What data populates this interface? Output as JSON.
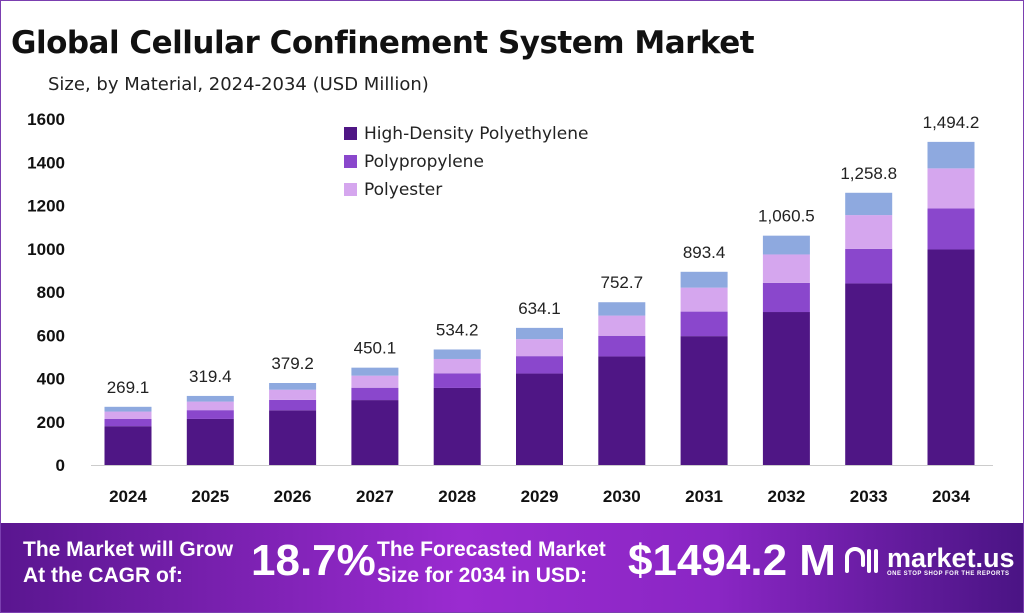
{
  "chart_data": {
    "type": "bar",
    "stacked": true,
    "title": "Global Cellular Confinement System Market",
    "subtitle": "Size, by Material, 2024-2034 (USD Million)",
    "categories": [
      "2024",
      "2025",
      "2026",
      "2027",
      "2028",
      "2029",
      "2030",
      "2031",
      "2032",
      "2033",
      "2034"
    ],
    "series": [
      {
        "name": "High-Density Polyethylene",
        "color": "#4f1685",
        "values": [
          179.5,
          213.0,
          252.9,
          300.2,
          356.3,
          422.9,
          502.0,
          595.9,
          707.4,
          839.6,
          996.6
        ]
      },
      {
        "name": "Polypropylene",
        "color": "#8a47cc",
        "values": [
          34.2,
          40.6,
          48.2,
          57.2,
          67.8,
          80.5,
          95.6,
          113.5,
          134.7,
          159.9,
          189.8
        ]
      },
      {
        "name": "Polyester",
        "color": "#d5a6ee",
        "values": [
          33.4,
          39.6,
          47.0,
          55.8,
          66.2,
          78.6,
          93.3,
          110.8,
          131.5,
          156.1,
          185.3
        ]
      },
      {
        "color": "#8ea9df",
        "values": [
          22.0,
          26.2,
          31.1,
          36.9,
          43.9,
          52.1,
          61.8,
          73.2,
          86.9,
          103.2,
          122.5
        ]
      }
    ],
    "totals": [
      "269.1",
      "319.4",
      "379.2",
      "450.1",
      "534.2",
      "634.1",
      "752.7",
      "893.4",
      "1,060.5",
      "1,258.8",
      "1,494.2"
    ],
    "yticks": [
      "0",
      "200",
      "400",
      "600",
      "800",
      "1000",
      "1200",
      "1400",
      "1600"
    ],
    "ylim": [
      0,
      1600
    ],
    "grid": false,
    "legend_position": "top-left"
  },
  "banner": {
    "cagr_label_1": "The Market will Grow",
    "cagr_label_2": "At the CAGR of:",
    "cagr_value": "18.7%",
    "forecast_label_1": "The Forecasted Market",
    "forecast_label_2": "Size for 2034 in USD:",
    "forecast_value": "$1494.2 M",
    "logo_text": "market.us",
    "logo_tagline": "ONE STOP SHOP FOR THE REPORTS"
  }
}
